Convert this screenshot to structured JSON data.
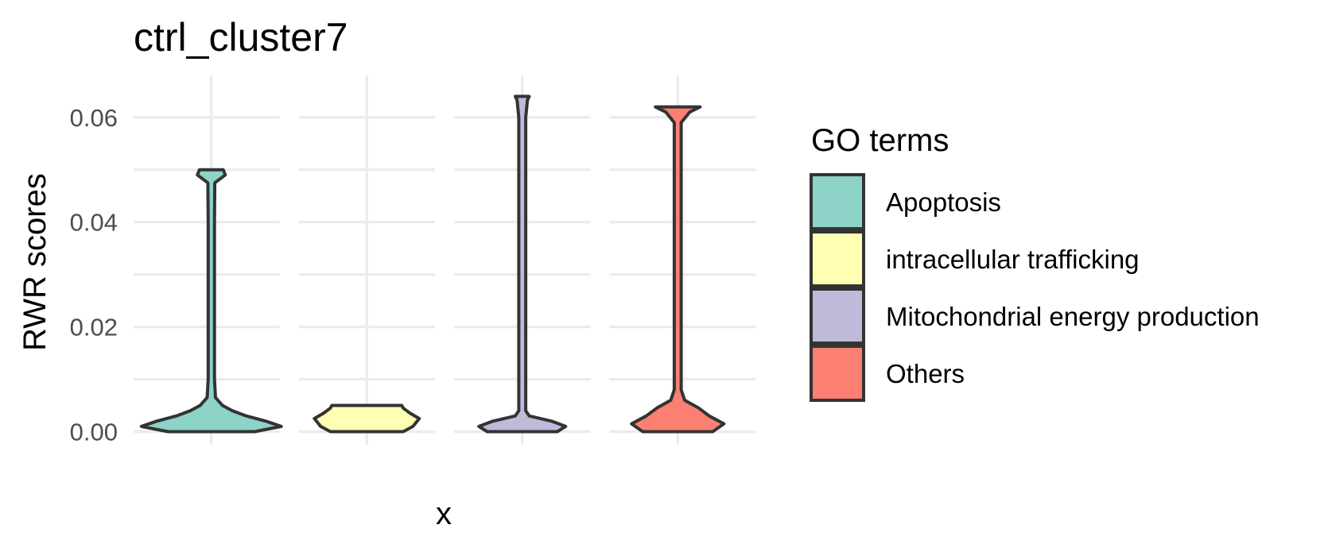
{
  "chart_data": {
    "type": "violin",
    "title": "ctrl_cluster7",
    "xlabel": "x",
    "ylabel": "RWR scores",
    "ylim": [
      -0.0025,
      0.068
    ],
    "yticks": [
      0.0,
      0.02,
      0.04,
      0.06
    ],
    "ytick_labels": [
      "0.00",
      "0.02",
      "0.04",
      "0.06"
    ],
    "grid": true,
    "legend": {
      "title": "GO terms",
      "placement": "right",
      "entries": [
        "Apoptosis",
        "intracellular trafficking",
        "Mitochondrial energy production",
        "Others"
      ]
    },
    "series": [
      {
        "name": "Apoptosis",
        "color": "#8DD3C7",
        "min": 0.0,
        "max": 0.05,
        "profile": [
          [
            0.0,
            0.62
          ],
          [
            0.001,
            1.0
          ],
          [
            0.002,
            0.78
          ],
          [
            0.003,
            0.5
          ],
          [
            0.004,
            0.3
          ],
          [
            0.005,
            0.16
          ],
          [
            0.0065,
            0.06
          ],
          [
            0.01,
            0.045
          ],
          [
            0.04,
            0.045
          ],
          [
            0.0475,
            0.05
          ],
          [
            0.049,
            0.2
          ],
          [
            0.05,
            0.17
          ]
        ]
      },
      {
        "name": "intracellular trafficking",
        "color": "#FFFFB3",
        "min": 0.0,
        "max": 0.005,
        "profile": [
          [
            0.0,
            0.52
          ],
          [
            0.001,
            0.66
          ],
          [
            0.0025,
            0.75
          ],
          [
            0.0035,
            0.62
          ],
          [
            0.0045,
            0.52
          ],
          [
            0.005,
            0.5
          ]
        ]
      },
      {
        "name": "Mitochondrial energy production",
        "color": "#BEBADA",
        "min": 0.0,
        "max": 0.064,
        "profile": [
          [
            0.0,
            0.5
          ],
          [
            0.001,
            0.62
          ],
          [
            0.002,
            0.42
          ],
          [
            0.003,
            0.1
          ],
          [
            0.004,
            0.05
          ],
          [
            0.06,
            0.05
          ],
          [
            0.0633,
            0.075
          ],
          [
            0.064,
            0.1
          ]
        ]
      },
      {
        "name": "Others",
        "color": "#FB8072",
        "min": 0.0,
        "max": 0.062,
        "profile": [
          [
            0.0,
            0.5
          ],
          [
            0.0015,
            0.66
          ],
          [
            0.003,
            0.45
          ],
          [
            0.0045,
            0.3
          ],
          [
            0.006,
            0.1
          ],
          [
            0.008,
            0.05
          ],
          [
            0.059,
            0.05
          ],
          [
            0.061,
            0.17
          ],
          [
            0.062,
            0.32
          ]
        ]
      }
    ]
  }
}
